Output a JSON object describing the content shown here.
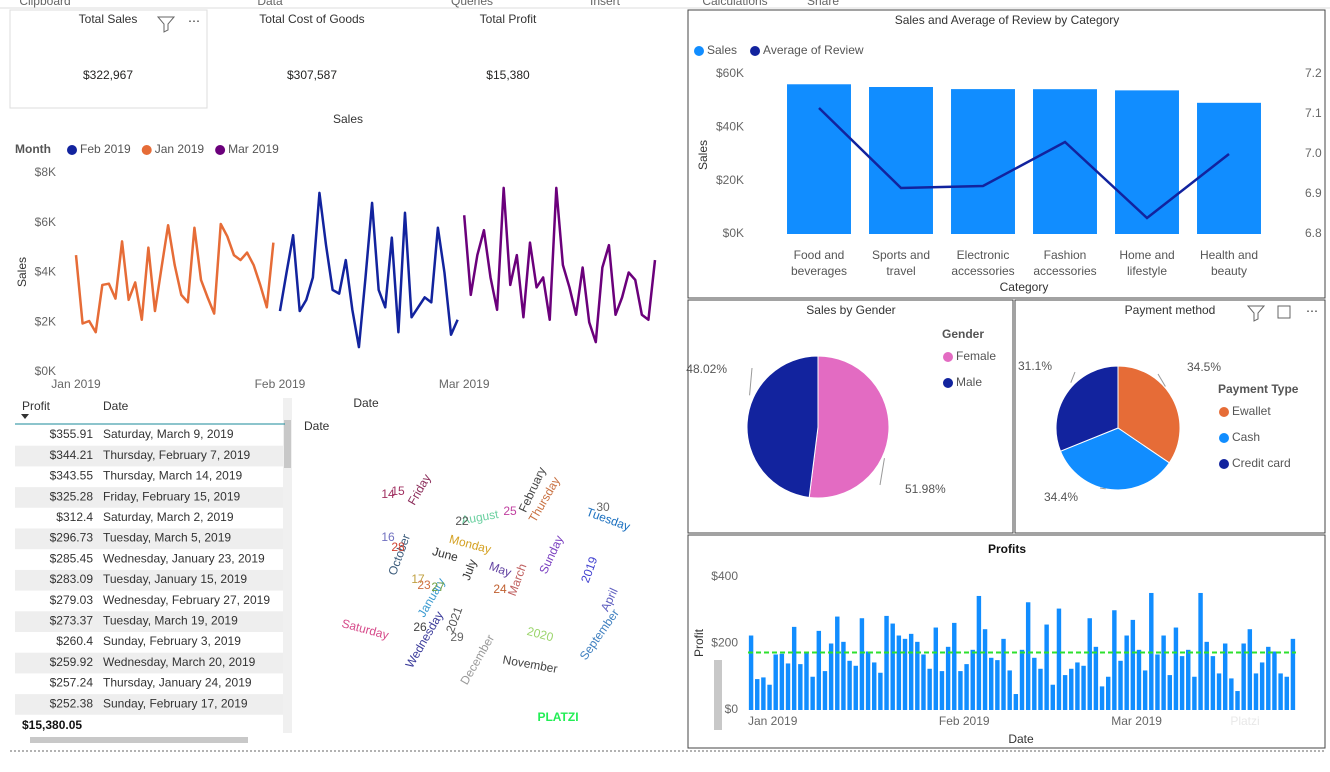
{
  "ribbon": [
    "Clipboard",
    "Data",
    "Queries",
    "Insert",
    "Calculations",
    "Share"
  ],
  "cards": [
    {
      "label": "Total Sales",
      "value": "$322,967"
    },
    {
      "label": "Total Cost of Goods",
      "value": "$307,587"
    },
    {
      "label": "Total Profit",
      "value": "$15,380"
    }
  ],
  "chart_data": [
    {
      "type": "line",
      "title": "Sales",
      "legend_title": "Month",
      "x_label": "Date",
      "y_label": "Sales",
      "xlim": [
        1,
        89
      ],
      "xticks": [
        {
          "value": 1,
          "label": "Jan 2019"
        },
        {
          "value": 32,
          "label": "Feb 2019"
        },
        {
          "value": 60,
          "label": "Mar 2019"
        }
      ],
      "ylim": [
        0,
        8000
      ],
      "yticks": [
        {
          "value": 0,
          "label": "$0K"
        },
        {
          "value": 2000,
          "label": "$2K"
        },
        {
          "value": 4000,
          "label": "$4K"
        },
        {
          "value": 6000,
          "label": "$6K"
        },
        {
          "value": 8000,
          "label": "$8K"
        }
      ],
      "grid": false,
      "series": [
        {
          "name": "Feb 2019",
          "color": "#12239e",
          "x": [
            32,
            33,
            34,
            35,
            36,
            37,
            38,
            39,
            40,
            41,
            42,
            43,
            44,
            45,
            46,
            47,
            48,
            49,
            50,
            51,
            52,
            53,
            54,
            55,
            56,
            57,
            58,
            59
          ],
          "values": [
            2450,
            4000,
            5500,
            2450,
            2900,
            3800,
            7200,
            5100,
            3300,
            3150,
            4500,
            2500,
            1000,
            3800,
            6800,
            3300,
            2600,
            5400,
            1600,
            6400,
            2200,
            2600,
            3000,
            2800,
            5800,
            4000,
            1500,
            2100
          ]
        },
        {
          "name": "Jan 2019",
          "color": "#e66c37",
          "x": [
            1,
            2,
            3,
            4,
            5,
            6,
            7,
            8,
            9,
            10,
            11,
            12,
            13,
            14,
            15,
            16,
            17,
            18,
            19,
            20,
            21,
            22,
            23,
            24,
            25,
            26,
            27,
            28,
            29,
            30,
            31
          ],
          "values": [
            4700,
            1950,
            2050,
            1600,
            3500,
            3550,
            2950,
            5250,
            2900,
            3600,
            2100,
            5000,
            2450,
            4200,
            5900,
            4300,
            3100,
            2800,
            5800,
            3700,
            3000,
            2350,
            5950,
            5450,
            4700,
            4500,
            4800,
            4300,
            3500,
            2600,
            5200
          ]
        },
        {
          "name": "Mar 2019",
          "color": "#6b007b",
          "x": [
            60,
            61,
            62,
            63,
            64,
            65,
            66,
            67,
            68,
            69,
            70,
            71,
            72,
            73,
            74,
            75,
            76,
            77,
            78,
            79,
            80,
            81,
            82,
            83,
            84,
            85,
            86,
            87,
            88,
            89
          ],
          "values": [
            6300,
            3100,
            4700,
            5700,
            3800,
            2500,
            7400,
            3500,
            4700,
            2200,
            5200,
            3400,
            3800,
            2100,
            7400,
            4300,
            3400,
            2300,
            4200,
            2000,
            1200,
            4200,
            5100,
            2300,
            3000,
            4000,
            3700,
            2300,
            2100,
            4500
          ]
        }
      ]
    },
    {
      "type": "combo",
      "title": "Sales and Average of Review by Category",
      "x_label": "Category",
      "y_label": "Sales",
      "categories": [
        "Food and beverages",
        "Sports and travel",
        "Electronic accessories",
        "Fashion accessories",
        "Home and lifestyle",
        "Health and beauty"
      ],
      "ylim": [
        0,
        60000
      ],
      "yticks": [
        {
          "value": 0,
          "label": "$0K"
        },
        {
          "value": 20000,
          "label": "$20K"
        },
        {
          "value": 40000,
          "label": "$40K"
        },
        {
          "value": 60000,
          "label": "$60K"
        }
      ],
      "y2lim": [
        6.8,
        7.2
      ],
      "y2ticks": [
        6.8,
        6.9,
        {
          "value": 7,
          "label": "7.0"
        },
        7.1,
        7.2
      ],
      "series": [
        {
          "name": "Sales",
          "color": "#118dff",
          "values": [
            56145,
            55123,
            54338,
            54306,
            53862,
            49194
          ]
        },
        {
          "name": "Average of Review",
          "color": "#12239e",
          "axis": "y2",
          "values": [
            7.115,
            6.915,
            6.92,
            7.03,
            6.84,
            7.0
          ]
        }
      ]
    },
    {
      "type": "pie",
      "title": "Sales by Gender",
      "legend_title": "Gender",
      "categories": [
        "Female",
        "Male"
      ],
      "values": [
        51.98,
        48.02
      ],
      "value_labels": [
        "51.98%",
        "48.02%"
      ],
      "colors": [
        "#e36bc2",
        "#12239e"
      ]
    },
    {
      "type": "pie",
      "title": "Payment method",
      "legend_title": "Payment Type",
      "categories": [
        "Ewallet",
        "Cash",
        "Credit card"
      ],
      "values": [
        34.5,
        34.4,
        31.1
      ],
      "value_labels": [
        "34.5%",
        "34.4%",
        "31.1%"
      ],
      "colors": [
        "#e66c37",
        "#118dff",
        "#12239e"
      ]
    },
    {
      "type": "bar",
      "title": "Profits",
      "x_label": "Date",
      "y_label": "Profit",
      "color": "#118dff",
      "xlim": [
        0.5,
        89.5
      ],
      "xticks": [
        {
          "value": 1,
          "label": "Jan 2019"
        },
        {
          "value": 32,
          "label": "Feb 2019"
        },
        {
          "value": 60,
          "label": "Mar 2019"
        }
      ],
      "ylim": [
        0,
        400
      ],
      "yticks": [
        {
          "value": 0,
          "label": "$0"
        },
        {
          "value": 200,
          "label": "$200"
        },
        {
          "value": 400,
          "label": "$400"
        }
      ],
      "average_line": {
        "value": 172.8,
        "color": "#2ee02e"
      },
      "x": [
        1,
        2,
        3,
        4,
        5,
        6,
        7,
        8,
        9,
        10,
        11,
        12,
        13,
        14,
        15,
        16,
        17,
        18,
        19,
        20,
        21,
        22,
        23,
        24,
        25,
        26,
        27,
        28,
        29,
        30,
        31,
        32,
        33,
        34,
        35,
        36,
        37,
        38,
        39,
        40,
        41,
        42,
        43,
        44,
        45,
        46,
        47,
        48,
        49,
        50,
        51,
        52,
        53,
        54,
        55,
        56,
        57,
        58,
        59,
        60,
        61,
        62,
        63,
        64,
        65,
        66,
        67,
        68,
        69,
        70,
        71,
        72,
        73,
        74,
        75,
        76,
        77,
        78,
        79,
        80,
        81,
        82,
        83,
        84,
        85,
        86,
        87,
        88,
        89
      ],
      "values": [
        224,
        93,
        98,
        76,
        167,
        169,
        140,
        250,
        138,
        171,
        100,
        238,
        117,
        200,
        281,
        205,
        148,
        133,
        276,
        176,
        143,
        112,
        283,
        260,
        224,
        214,
        229,
        205,
        167,
        124,
        248,
        117,
        190,
        262,
        117,
        138,
        181,
        343,
        243,
        157,
        150,
        214,
        119,
        48,
        181,
        324,
        157,
        124,
        257,
        76,
        305,
        105,
        124,
        143,
        133,
        276,
        190,
        71,
        100,
        300,
        148,
        224,
        271,
        181,
        119,
        352,
        167,
        224,
        105,
        248,
        162,
        181,
        100,
        352,
        205,
        162,
        110,
        200,
        95,
        57,
        200,
        243,
        110,
        143,
        190,
        176,
        110,
        100,
        214
      ]
    }
  ],
  "table": {
    "columns": [
      "Profit",
      "Date"
    ],
    "rows": [
      [
        "$355.91",
        "Saturday, March 9, 2019"
      ],
      [
        "$344.21",
        "Thursday, February 7, 2019"
      ],
      [
        "$343.55",
        "Thursday, March 14, 2019"
      ],
      [
        "$325.28",
        "Friday, February 15, 2019"
      ],
      [
        "$312.4",
        "Saturday, March 2, 2019"
      ],
      [
        "$296.73",
        "Tuesday, March 5, 2019"
      ],
      [
        "$285.45",
        "Wednesday, January 23, 2019"
      ],
      [
        "$283.09",
        "Tuesday, January 15, 2019"
      ],
      [
        "$279.03",
        "Wednesday, February 27, 2019"
      ],
      [
        "$273.37",
        "Tuesday, March 19, 2019"
      ],
      [
        "$260.4",
        "Sunday, February 3, 2019"
      ],
      [
        "$259.92",
        "Wednesday, March 20, 2019"
      ],
      [
        "$257.24",
        "Thursday, January 24, 2019"
      ],
      [
        "$252.38",
        "Sunday, February 17, 2019"
      ]
    ],
    "total": "$15,380.05"
  },
  "word_cloud": {
    "title": "Date",
    "words": [
      "Friday",
      "Saturday",
      "Wednesday",
      "2021",
      "2020",
      "2019",
      "Sunday",
      "Thursday",
      "Tuesday",
      "Monday",
      "June",
      "July",
      "May",
      "March",
      "April",
      "September",
      "November",
      "October",
      "January",
      "August",
      "February",
      "December",
      "14",
      "15",
      "16",
      "28",
      "22",
      "25",
      "30",
      "17",
      "23",
      "27",
      "26",
      "29",
      "24"
    ]
  },
  "banner": "PLATZI",
  "watermark": "Platzi"
}
